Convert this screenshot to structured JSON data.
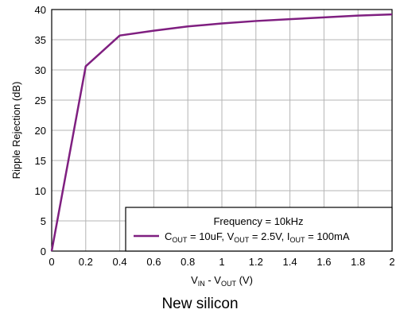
{
  "chart_data": {
    "type": "line",
    "ylabel": "Ripple Rejection (dB)",
    "xlabel_parts": [
      "V",
      "IN",
      " - V",
      "OUT",
      " (V)"
    ],
    "xlim": [
      0,
      2
    ],
    "ylim": [
      0,
      40
    ],
    "x_ticks": [
      0,
      0.2,
      0.4,
      0.6,
      0.8,
      1,
      1.2,
      1.4,
      1.6,
      1.8,
      2
    ],
    "y_ticks": [
      0,
      5,
      10,
      15,
      20,
      25,
      30,
      35,
      40
    ],
    "grid": true,
    "series_color": "#7f1f80",
    "legend": {
      "placement": "bottom-right",
      "title": "Frequency = 10kHz",
      "entry_parts": [
        "C",
        "OUT",
        " = 10uF, V",
        "OUT",
        " = 2.5V, I",
        "OUT",
        " = 100mA"
      ]
    },
    "series": [
      {
        "x": [
          0,
          0.2,
          0.4,
          0.6,
          0.8,
          1.0,
          1.2,
          1.4,
          1.6,
          1.8,
          2.0
        ],
        "y": [
          0,
          30.6,
          35.7,
          36.5,
          37.2,
          37.7,
          38.1,
          38.4,
          38.7,
          39.0,
          39.2
        ]
      }
    ]
  },
  "caption": "New silicon"
}
